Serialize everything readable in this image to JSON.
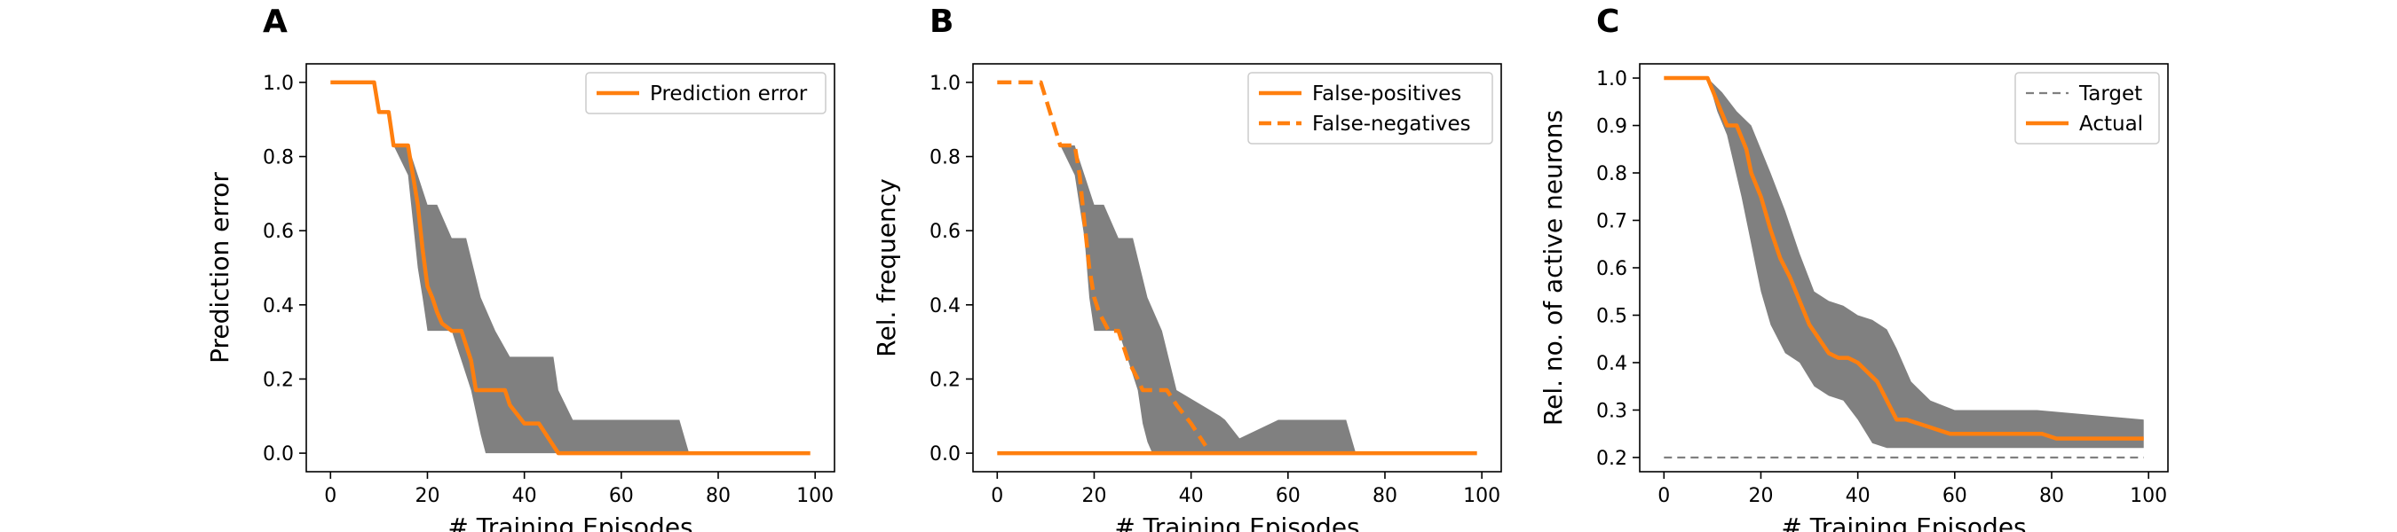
{
  "chart_data": [
    {
      "panel": "A",
      "type": "line",
      "xlabel": "# Training Episodes",
      "ylabel": "Prediction error",
      "xlim": [
        -5,
        104
      ],
      "ylim": [
        -0.05,
        1.05
      ],
      "xticks": [
        0,
        20,
        40,
        60,
        80,
        100
      ],
      "yticks": [
        0.0,
        0.2,
        0.4,
        0.6,
        0.8,
        1.0
      ],
      "ytick_labels": [
        "0.0",
        "0.2",
        "0.4",
        "0.6",
        "0.8",
        "1.0"
      ],
      "legend_position": "top-right",
      "band_color": "#808080",
      "series": [
        {
          "name": "Prediction error",
          "color": "#ff7f0e",
          "style": "solid",
          "x": [
            0,
            9,
            10,
            11,
            12,
            13,
            16,
            17,
            18,
            19,
            20,
            21,
            22,
            23,
            25,
            27,
            29,
            30,
            31,
            36,
            37,
            40,
            43,
            45,
            47,
            99
          ],
          "y": [
            1.0,
            1.0,
            0.92,
            0.92,
            0.92,
            0.83,
            0.83,
            0.75,
            0.67,
            0.55,
            0.45,
            0.42,
            0.38,
            0.35,
            0.33,
            0.33,
            0.25,
            0.17,
            0.17,
            0.17,
            0.13,
            0.08,
            0.08,
            0.04,
            0.0,
            0.0
          ]
        }
      ],
      "band": {
        "upper_x": [
          0,
          9,
          11,
          13,
          16,
          18,
          20,
          22,
          25,
          28,
          31,
          34,
          37,
          46,
          47,
          50,
          58,
          72,
          74,
          99
        ],
        "upper_y": [
          1.0,
          1.0,
          0.92,
          0.83,
          0.83,
          0.75,
          0.67,
          0.67,
          0.58,
          0.58,
          0.42,
          0.33,
          0.26,
          0.26,
          0.17,
          0.09,
          0.09,
          0.09,
          0.0,
          0.0
        ],
        "lower_x": [
          0,
          9,
          11,
          13,
          16,
          18,
          19,
          20,
          22,
          25,
          27,
          29,
          31,
          32,
          33,
          99
        ],
        "lower_y": [
          1.0,
          1.0,
          0.92,
          0.83,
          0.75,
          0.5,
          0.42,
          0.33,
          0.33,
          0.33,
          0.25,
          0.17,
          0.05,
          0.0,
          0.0,
          0.0
        ]
      }
    },
    {
      "panel": "B",
      "type": "line",
      "xlabel": "# Training Episodes",
      "ylabel": "Rel. frequency",
      "xlim": [
        -5,
        104
      ],
      "ylim": [
        -0.05,
        1.05
      ],
      "xticks": [
        0,
        20,
        40,
        60,
        80,
        100
      ],
      "yticks": [
        0.0,
        0.2,
        0.4,
        0.6,
        0.8,
        1.0
      ],
      "ytick_labels": [
        "0.0",
        "0.2",
        "0.4",
        "0.6",
        "0.8",
        "1.0"
      ],
      "legend_position": "top-right",
      "band_color": "#808080",
      "series": [
        {
          "name": "False-positives",
          "color": "#ff7f0e",
          "style": "solid",
          "x": [
            0,
            99
          ],
          "y": [
            0.0,
            0.0
          ]
        },
        {
          "name": "False-negatives",
          "color": "#ff7f0e",
          "style": "dashed",
          "x": [
            0,
            9,
            13,
            16,
            17,
            18,
            19,
            20,
            21,
            23,
            25,
            27,
            29,
            30,
            32,
            35,
            37,
            40,
            43
          ],
          "y": [
            1.0,
            1.0,
            0.83,
            0.83,
            0.75,
            0.62,
            0.5,
            0.42,
            0.38,
            0.33,
            0.33,
            0.25,
            0.2,
            0.17,
            0.17,
            0.17,
            0.13,
            0.08,
            0.02
          ]
        }
      ],
      "band": {
        "upper_x": [
          0,
          9,
          13,
          16,
          18,
          20,
          22,
          25,
          28,
          31,
          34,
          37,
          46,
          47,
          50,
          58,
          72,
          74,
          99
        ],
        "upper_y": [
          1.0,
          1.0,
          0.83,
          0.83,
          0.75,
          0.67,
          0.67,
          0.58,
          0.58,
          0.42,
          0.33,
          0.17,
          0.1,
          0.09,
          0.04,
          0.09,
          0.09,
          0.0,
          0.0
        ],
        "lower_x": [
          0,
          9,
          13,
          16,
          18,
          19,
          20,
          22,
          25,
          27,
          29,
          30,
          31,
          32,
          99
        ],
        "lower_y": [
          1.0,
          1.0,
          0.83,
          0.75,
          0.58,
          0.42,
          0.33,
          0.33,
          0.33,
          0.25,
          0.17,
          0.08,
          0.03,
          0.0,
          0.0
        ]
      }
    },
    {
      "panel": "C",
      "type": "line",
      "xlabel": "# Training Episodes",
      "ylabel": "Rel. no. of active neurons",
      "xlim": [
        -5,
        104
      ],
      "ylim": [
        0.17,
        1.03
      ],
      "xticks": [
        0,
        20,
        40,
        60,
        80,
        100
      ],
      "yticks": [
        0.2,
        0.3,
        0.4,
        0.5,
        0.6,
        0.7,
        0.8,
        0.9,
        1.0
      ],
      "ytick_labels": [
        "0.2",
        "0.3",
        "0.4",
        "0.5",
        "0.6",
        "0.7",
        "0.8",
        "0.9",
        "1.0"
      ],
      "legend_position": "top-right",
      "band_color": "#808080",
      "series": [
        {
          "name": "Target",
          "color": "#808080",
          "style": "dashed",
          "x": [
            0,
            99
          ],
          "y": [
            0.2,
            0.2
          ]
        },
        {
          "name": "Actual",
          "color": "#ff7f0e",
          "style": "solid",
          "x": [
            0,
            9,
            11,
            13,
            15,
            17,
            18,
            20,
            22,
            24,
            26,
            28,
            30,
            32,
            34,
            36,
            38,
            40,
            42,
            44,
            46,
            48,
            50,
            53,
            56,
            59,
            70,
            78,
            81,
            99
          ],
          "y": [
            1.0,
            1.0,
            0.95,
            0.9,
            0.9,
            0.85,
            0.8,
            0.75,
            0.68,
            0.62,
            0.58,
            0.53,
            0.48,
            0.45,
            0.42,
            0.41,
            0.41,
            0.4,
            0.38,
            0.36,
            0.32,
            0.28,
            0.28,
            0.27,
            0.26,
            0.25,
            0.25,
            0.25,
            0.24,
            0.24
          ]
        }
      ],
      "band": {
        "upper_x": [
          0,
          9,
          12,
          15,
          18,
          20,
          22,
          25,
          28,
          31,
          34,
          37,
          40,
          43,
          46,
          48,
          51,
          55,
          60,
          77,
          99
        ],
        "upper_y": [
          1.0,
          1.0,
          0.97,
          0.93,
          0.9,
          0.85,
          0.8,
          0.72,
          0.63,
          0.55,
          0.53,
          0.52,
          0.5,
          0.49,
          0.47,
          0.43,
          0.36,
          0.32,
          0.3,
          0.3,
          0.28
        ],
        "lower_x": [
          0,
          9,
          11,
          13,
          16,
          18,
          19,
          20,
          22,
          25,
          28,
          31,
          34,
          37,
          40,
          43,
          46,
          52,
          60,
          99
        ],
        "lower_y": [
          1.0,
          1.0,
          0.93,
          0.88,
          0.75,
          0.65,
          0.6,
          0.55,
          0.48,
          0.42,
          0.4,
          0.35,
          0.33,
          0.32,
          0.28,
          0.23,
          0.22,
          0.22,
          0.22,
          0.22
        ]
      }
    }
  ]
}
